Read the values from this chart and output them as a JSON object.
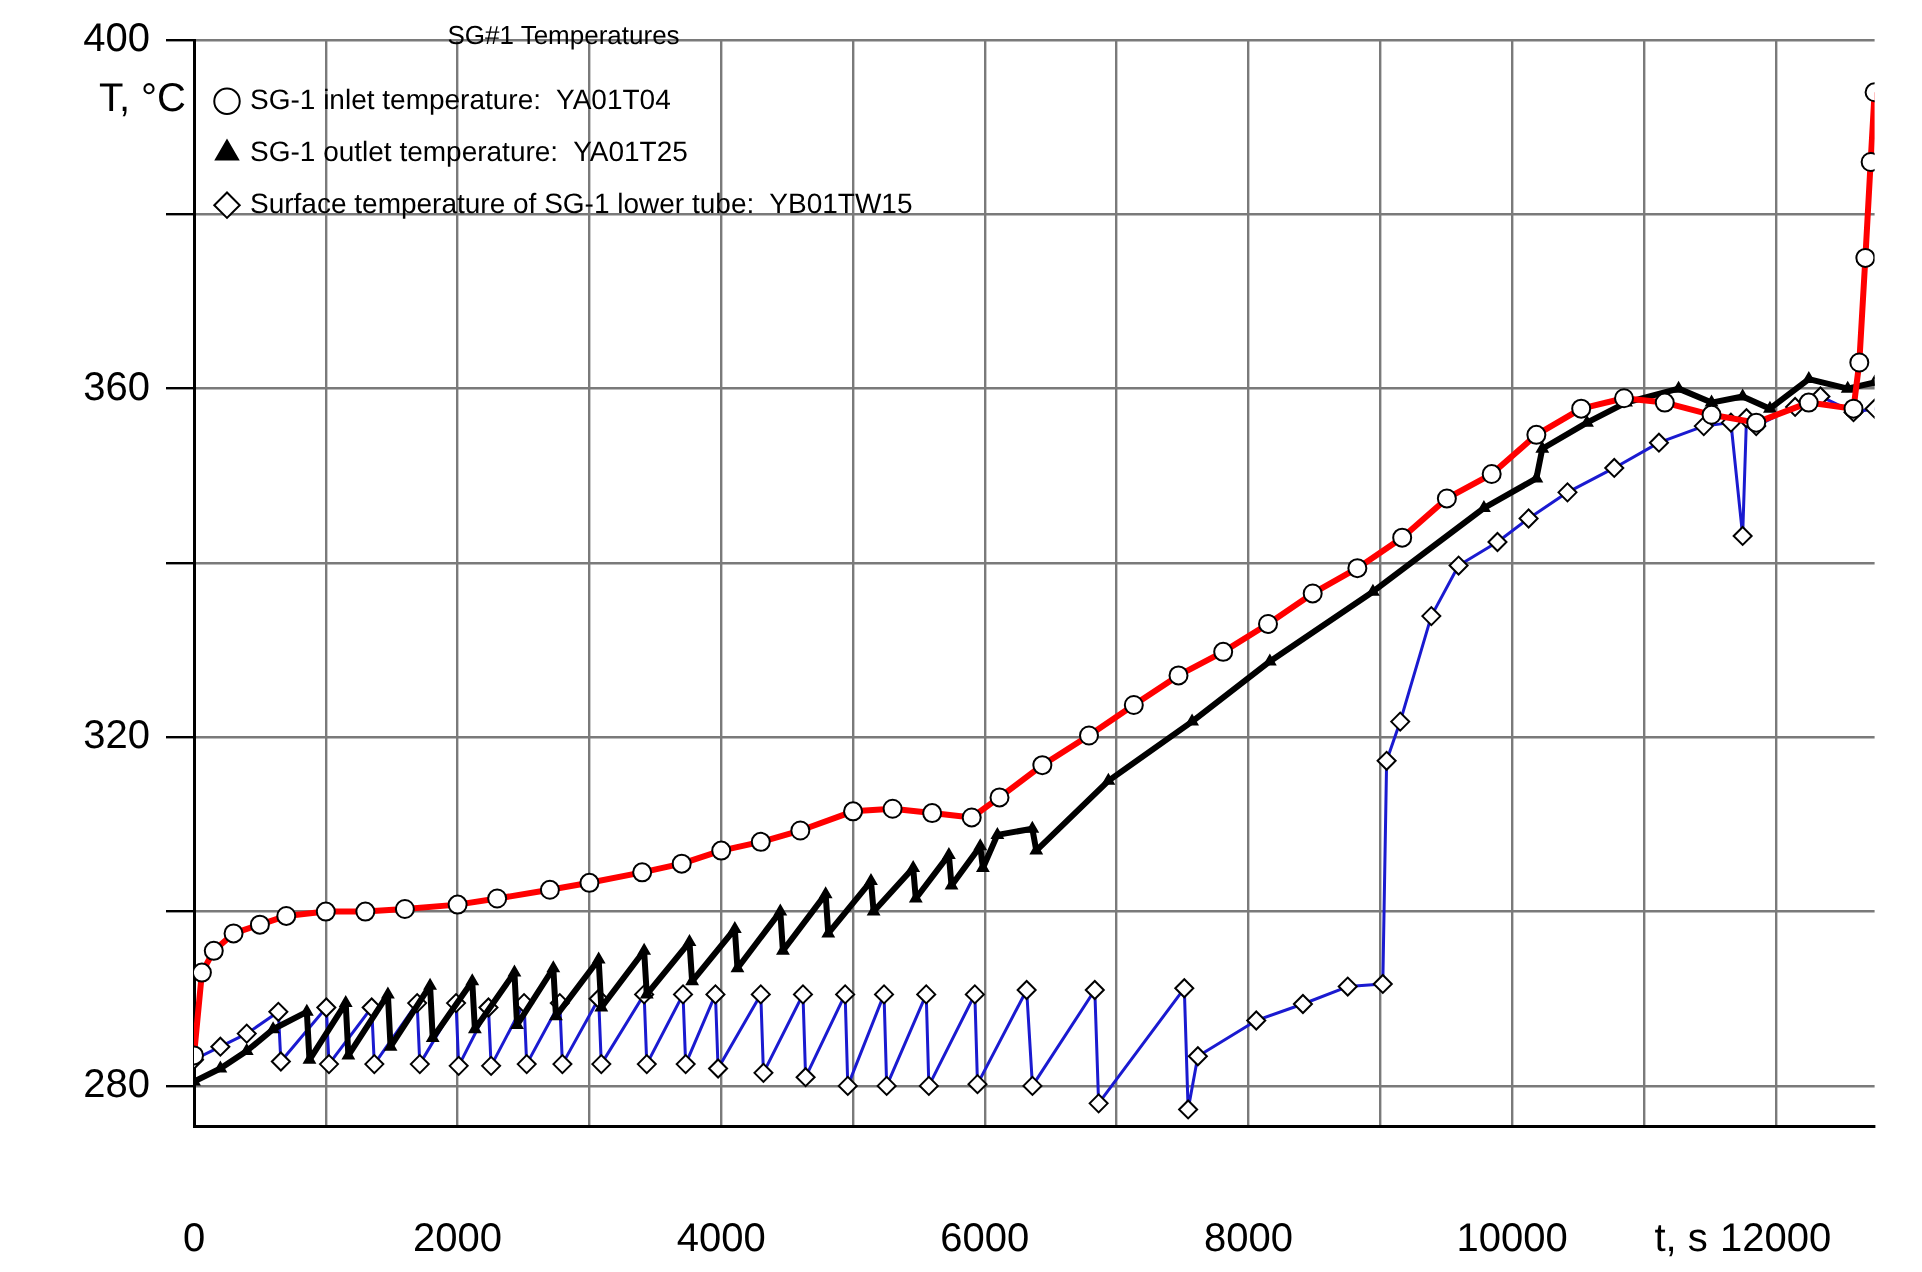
{
  "chart_data": {
    "type": "line",
    "xlabel": "t, s",
    "ylabel": "T, °C",
    "legend_title": "SG#1 Temperatures",
    "legend": "top left",
    "grid": true,
    "xlim": [
      0,
      12750
    ],
    "xticks": [
      0,
      {
        "value": 1000,
        "label": null
      },
      2000,
      {
        "value": 3000,
        "label": null
      },
      4000,
      {
        "value": 5000,
        "label": null
      },
      6000,
      {
        "value": 7000,
        "label": null
      },
      8000,
      {
        "value": 9000,
        "label": null
      },
      10000,
      {
        "value": 11000,
        "label": null
      },
      12000
    ],
    "ylim": [
      275.4,
      400
    ],
    "yticks": [
      280,
      {
        "value": 300,
        "label": null
      },
      320,
      {
        "value": 340,
        "label": null
      },
      360,
      {
        "value": 380,
        "label": null
      },
      400
    ],
    "series": [
      {
        "name": "SG-1 inlet temperature:  YA01T04",
        "color": "#ff0000",
        "marker": "circle",
        "x": [
          0,
          60,
          150,
          300,
          500,
          700,
          1000,
          1300,
          1600,
          2000,
          2300,
          2700,
          3000,
          3400,
          3700,
          4000,
          4300,
          4600,
          5000,
          5300,
          5600,
          5900,
          6111,
          6436,
          6790,
          7130,
          7469,
          7808,
          8148,
          8487,
          8826,
          9166,
          9505,
          9845,
          10184,
          10524,
          10849,
          11158,
          11513,
          11852,
          12250,
          12590,
          12634,
          12680,
          12720,
          12750
        ],
        "values": [
          283.5,
          293,
          295.5,
          297.5,
          298.5,
          299.5,
          300,
          300,
          300.3,
          300.8,
          301.5,
          302.5,
          303.3,
          304.5,
          305.5,
          307,
          308,
          309.3,
          311.5,
          311.8,
          311.3,
          310.8,
          313.1,
          316.8,
          320.2,
          323.7,
          327.1,
          329.8,
          333,
          336.5,
          339.4,
          342.9,
          347.4,
          350.2,
          354.7,
          357.7,
          358.9,
          358.4,
          357,
          356.1,
          358.4,
          357.7,
          363,
          375,
          386,
          394
        ]
      },
      {
        "name": "SG-1 outlet temperature:  YA01T25",
        "color": "#000000",
        "marker": "triangle",
        "x": [
          0,
          200,
          400,
          600,
          856,
          876,
          1151,
          1171,
          1471,
          1491,
          1791,
          1811,
          2111,
          2131,
          2431,
          2451,
          2726,
          2746,
          3070,
          3090,
          3415,
          3435,
          3759,
          3779,
          4103,
          4123,
          4448,
          4468,
          4792,
          4812,
          5136,
          5156,
          5456,
          5476,
          5727,
          5747,
          5965,
          5985,
          6095,
          6360,
          6390,
          6937,
          7572,
          8162,
          8944,
          9786,
          10184,
          10229,
          10568,
          10864,
          11263,
          11513,
          11749,
          11956,
          12251,
          12546,
          12750
        ],
        "values": [
          280.5,
          282,
          284,
          286.5,
          288.5,
          283,
          289.5,
          283.5,
          290.5,
          284.5,
          291.5,
          285.5,
          292,
          286.5,
          293,
          287,
          293.5,
          288,
          294.5,
          289,
          295.5,
          290.5,
          296.5,
          292,
          298,
          293.5,
          300,
          295.5,
          302,
          297.5,
          303.5,
          300,
          305,
          301.5,
          306.5,
          303,
          307.5,
          305,
          308.8,
          309.5,
          307,
          315,
          321.8,
          328.7,
          336.7,
          346.3,
          349.7,
          353.1,
          356.1,
          358.4,
          360,
          358.4,
          359.1,
          357.7,
          361.1,
          360,
          360.7
        ]
      },
      {
        "name": "Surface temperature of SG-1 lower tube:  YB01TW15",
        "color": "#1a1ad0",
        "marker": "diamond",
        "x": [
          0,
          200,
          400,
          640,
          659,
          1004,
          1024,
          1348,
          1368,
          1693,
          1713,
          1988,
          2008,
          2234,
          2254,
          2504,
          2524,
          2775,
          2795,
          3070,
          3090,
          3415,
          3435,
          3710,
          3730,
          3956,
          3976,
          4300,
          4320,
          4620,
          4640,
          4940,
          4960,
          5235,
          5255,
          5555,
          5575,
          5924,
          5944,
          6317,
          6361,
          6834,
          6863,
          7513,
          7542,
          7616,
          8059,
          8413,
          8753,
          9019,
          9048,
          9151,
          9387,
          9594,
          9889,
          10125,
          10420,
          10775,
          11114,
          11454,
          11660,
          11749,
          11778,
          11852,
          12147,
          12339,
          12590,
          12750
        ],
        "values": [
          283,
          284.5,
          286,
          288.5,
          282.8,
          289,
          282.5,
          289,
          282.5,
          289.5,
          282.5,
          289.5,
          282.3,
          289,
          282.3,
          289.5,
          282.5,
          289.5,
          282.5,
          290,
          282.5,
          290.5,
          282.5,
          290.5,
          282.5,
          290.5,
          282,
          290.5,
          281.5,
          290.5,
          281,
          290.5,
          280,
          290.5,
          280,
          290.5,
          280,
          290.5,
          280.2,
          291,
          280,
          291,
          278,
          291.2,
          277.3,
          283.4,
          287.5,
          289.4,
          291.4,
          291.7,
          317.3,
          321.8,
          333.9,
          339.7,
          342.4,
          345.1,
          348.1,
          350.9,
          353.8,
          355.7,
          356.1,
          343.1,
          356.6,
          355.7,
          357.9,
          359.1,
          357.3,
          357.7
        ]
      }
    ]
  }
}
